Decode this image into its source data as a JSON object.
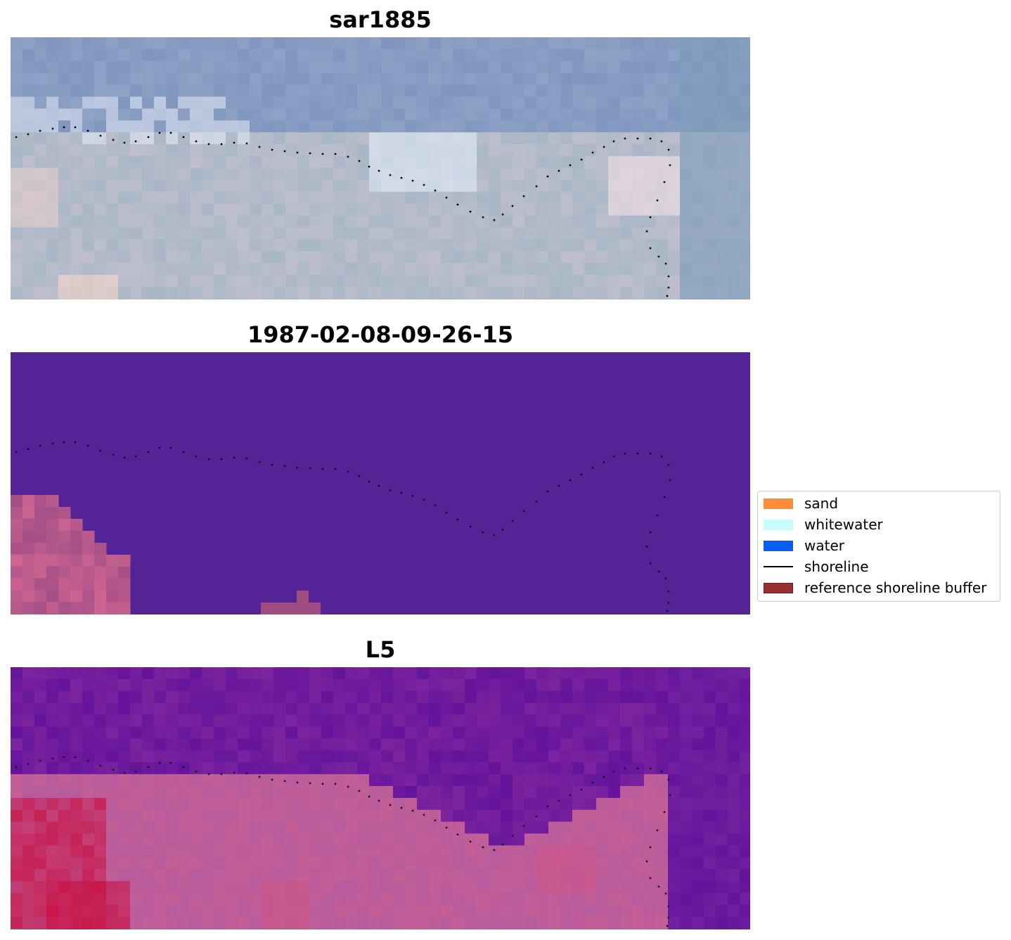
{
  "panels": [
    {
      "title": "sar1885"
    },
    {
      "title": "1987-02-08-09-26-15"
    },
    {
      "title": "L5"
    }
  ],
  "legend": {
    "items": [
      {
        "label": "sand",
        "color": "#ff8c3a",
        "kind": "patch"
      },
      {
        "label": "whitewater",
        "color": "#c8fbfb",
        "kind": "patch"
      },
      {
        "label": "water",
        "color": "#0a5cf5",
        "kind": "patch"
      },
      {
        "label": "shoreline",
        "color": "#000000",
        "kind": "line"
      },
      {
        "label": "reference shoreline buffer",
        "color": "#9b2f2f",
        "kind": "patch"
      }
    ]
  },
  "colors": {
    "sar_base": "#8ea6c0",
    "classification_background": "#542496",
    "buffer_overlay": "#a04c80",
    "l5_base": "#6a1a9a",
    "l5_land": "#c8649c"
  }
}
